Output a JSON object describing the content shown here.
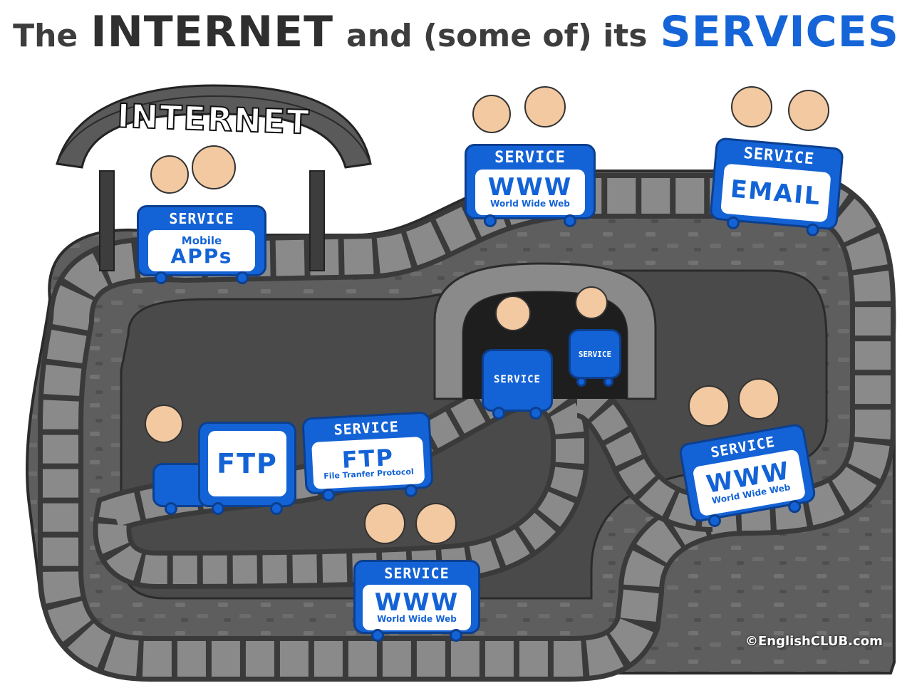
{
  "title": {
    "part1": "The",
    "part2": "INTERNET",
    "part3": "and (some of) its",
    "part4": "SERVICES"
  },
  "gate_sign": "INTERNET",
  "carts": {
    "apps": {
      "service": "SERVICE",
      "line1": "Mobile",
      "line2": "APPs"
    },
    "www_top": {
      "service": "SERVICE",
      "main": "WWW",
      "sub": "World Wide Web"
    },
    "email": {
      "service": "SERVICE",
      "main": "EMAIL"
    },
    "tunnel_1": {
      "service": "SERVICE"
    },
    "tunnel_2": {
      "service": "SERVICE"
    },
    "ftp_engine": {
      "main": "FTP"
    },
    "ftp": {
      "service": "SERVICE",
      "main": "FTP",
      "sub": "File Tranfer Protocol"
    },
    "www_right": {
      "service": "SERVICE",
      "main": "WWW",
      "sub": "World Wide Web"
    },
    "www_bottom": {
      "service": "SERVICE",
      "main": "WWW",
      "sub": "World Wide Web"
    }
  },
  "copyright": "©EnglishCLUB.com",
  "colors": {
    "cart_blue": "#1463d6",
    "cart_border": "#0c3f8f",
    "track": "#7b7b7b",
    "ground": "#5b5b5b",
    "title_blue": "#1565d8"
  }
}
